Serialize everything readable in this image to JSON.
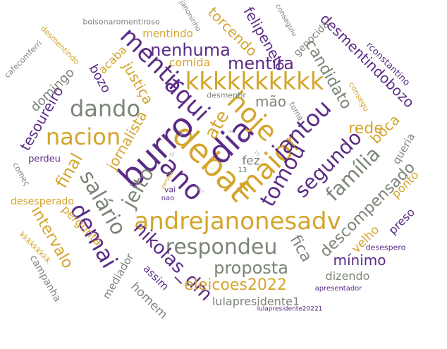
{
  "palette": {
    "gold": "#d4a52c",
    "purple": "#5b2c86",
    "gray": "#7b8577",
    "light": "#b8b8b8"
  },
  "words": [
    "kkkkkkkkkk",
    "debat",
    "dia",
    "burro",
    "andrejanonesadv",
    "maior",
    "hoje",
    "respondeu",
    "jantou",
    "nacion",
    "aqui",
    "ano",
    "demai",
    "dando",
    "mentir",
    "ate",
    "salário",
    "jeito",
    "tomou",
    "segundo",
    "família",
    "nikolas_dm",
    "proposta",
    "mentira",
    "nenhuma",
    "eleicoes2022",
    "rede",
    "final",
    "candidato",
    "boca",
    "descompensado",
    "torcendo",
    "felipeneto",
    "jornalista",
    "intervalo",
    "justiça",
    "fica",
    "desmentindobozo",
    "mão",
    "tesoureiro",
    "domingo",
    "bozo",
    "mínimo",
    "desmentindo",
    "dizendo",
    "pergunta",
    "comida",
    "mentindo",
    "acaba",
    "velho",
    "queria",
    "ponto",
    "preso",
    "genocida",
    "rconstantino",
    "consegu",
    "lulapresidente1",
    "homem",
    "assim",
    "mediador",
    "campanha",
    "kkkkkkkkk",
    "desesperado",
    "perdeu",
    "começ",
    "desespero",
    "apresentador",
    "lulapresidente20221",
    "fez",
    "desmentir",
    "toma",
    "bolsonaromentiroso",
    "cafecomferri",
    "janoninho",
    "conseguiu",
    "13",
    "vai",
    "nao",
    "verdad",
    "part",
    "tô",
    "10",
    "de",
    "ver"
  ]
}
